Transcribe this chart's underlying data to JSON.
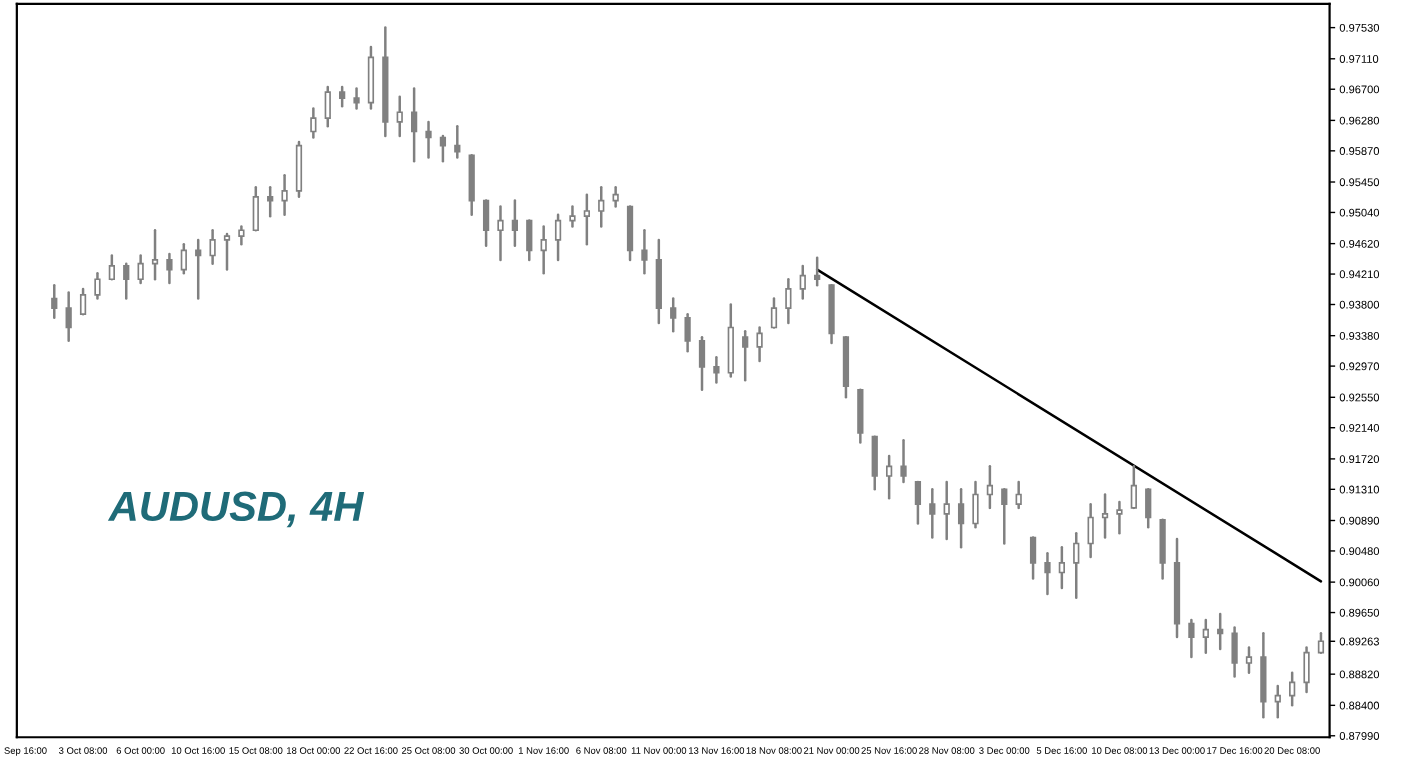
{
  "chart_data": {
    "type": "candlestick",
    "title": "AUDUSD, 4H",
    "color": "#808080",
    "grid": false,
    "categories": [
      "Sep 16:00",
      null,
      null,
      null,
      "3 Oct 08:00",
      null,
      null,
      null,
      "6 Oct 00:00",
      null,
      null,
      null,
      "10 Oct 16:00",
      null,
      null,
      null,
      "15 Oct 08:00",
      null,
      null,
      null,
      "18 Oct 00:00",
      null,
      null,
      null,
      "22 Oct 16:00",
      null,
      null,
      null,
      "25 Oct 08:00",
      null,
      null,
      null,
      "30 Oct 00:00",
      null,
      null,
      null,
      "1 Nov 16:00",
      null,
      null,
      null,
      "6 Nov 08:00",
      null,
      null,
      null,
      "11 Nov 00:00",
      null,
      null,
      null,
      "13 Nov 16:00",
      null,
      null,
      null,
      "18 Nov 08:00",
      null,
      null,
      null,
      "21 Nov 00:00",
      null,
      null,
      null,
      "25 Nov 16:00",
      null,
      null,
      null,
      "28 Nov 08:00",
      null,
      null,
      null,
      "3 Dec 00:00",
      null,
      null,
      null,
      "5 Dec 16:00",
      null,
      null,
      null,
      "10 Dec 08:00",
      null,
      null,
      null,
      "13 Dec 00:00",
      null,
      null,
      null,
      "17 Dec 16:00",
      null,
      null,
      null,
      "20 Dec 08:00",
      null,
      null
    ],
    "ohlc": [
      null,
      null,
      [
        0.9388,
        0.9406,
        0.9362,
        0.9375
      ],
      [
        0.9375,
        0.9396,
        0.9331,
        0.9349
      ],
      [
        0.9367,
        0.9401,
        0.9367,
        0.9393
      ],
      [
        0.9393,
        0.9422,
        0.9388,
        0.9414
      ],
      [
        0.9414,
        0.9446,
        0.9414,
        0.9432
      ],
      [
        0.9432,
        0.9435,
        0.9388,
        0.9414
      ],
      [
        0.9414,
        0.9446,
        0.9409,
        0.9435
      ],
      [
        0.9435,
        0.948,
        0.9414,
        0.944
      ],
      [
        0.944,
        0.9448,
        0.9409,
        0.9427
      ],
      [
        0.9427,
        0.9461,
        0.9422,
        0.9453
      ],
      [
        0.9453,
        0.9467,
        0.9388,
        0.9446
      ],
      [
        0.9446,
        0.948,
        0.9435,
        0.9467
      ],
      [
        0.9467,
        0.9475,
        0.9427,
        0.9472
      ],
      [
        0.9472,
        0.9485,
        0.9461,
        0.948
      ],
      [
        0.948,
        0.9538,
        0.948,
        0.9525
      ],
      [
        0.9525,
        0.9538,
        0.9499,
        0.952
      ],
      [
        0.952,
        0.9554,
        0.9501,
        0.9533
      ],
      [
        0.9533,
        0.9599,
        0.9525,
        0.9594
      ],
      [
        0.9613,
        0.9644,
        0.9605,
        0.9631
      ],
      [
        0.9631,
        0.9673,
        0.962,
        0.9666
      ],
      [
        0.9666,
        0.9673,
        0.9647,
        0.9658
      ],
      [
        0.9658,
        0.9671,
        0.9644,
        0.9652
      ],
      [
        0.9652,
        0.9727,
        0.9644,
        0.9713
      ],
      [
        0.9713,
        0.9753,
        0.9607,
        0.9626
      ],
      [
        0.9626,
        0.966,
        0.9607,
        0.9639
      ],
      [
        0.9639,
        0.9671,
        0.9573,
        0.9613
      ],
      [
        0.9613,
        0.9626,
        0.9578,
        0.9605
      ],
      [
        0.9605,
        0.9607,
        0.9573,
        0.9594
      ],
      [
        0.9594,
        0.962,
        0.9578,
        0.9586
      ],
      [
        0.9581,
        0.9581,
        0.9501,
        0.952
      ],
      [
        0.952,
        0.952,
        0.9459,
        0.948
      ],
      [
        0.948,
        0.9512,
        0.944,
        0.9493
      ],
      [
        0.9493,
        0.952,
        0.9459,
        0.948
      ],
      [
        0.9493,
        0.9493,
        0.944,
        0.9453
      ],
      [
        0.9453,
        0.9485,
        0.9422,
        0.9467
      ],
      [
        0.9467,
        0.9501,
        0.944,
        0.9493
      ],
      [
        0.9493,
        0.9512,
        0.9485,
        0.9499
      ],
      [
        0.9499,
        0.9528,
        0.9461,
        0.9506
      ],
      [
        0.9506,
        0.9538,
        0.9485,
        0.952
      ],
      [
        0.952,
        0.9538,
        0.9512,
        0.9528
      ],
      [
        0.9512,
        0.9512,
        0.944,
        0.9453
      ],
      [
        0.9453,
        0.948,
        0.9422,
        0.944
      ],
      [
        0.944,
        0.9467,
        0.9355,
        0.9375
      ],
      [
        0.9375,
        0.9388,
        0.9344,
        0.9362
      ],
      [
        0.9362,
        0.9367,
        0.9317,
        0.9331
      ],
      [
        0.9331,
        0.9336,
        0.9265,
        0.9296
      ],
      [
        0.9296,
        0.9309,
        0.9275,
        0.9288
      ],
      [
        0.9288,
        0.938,
        0.9283,
        0.9349
      ],
      [
        0.9336,
        0.9344,
        0.9278,
        0.9323
      ],
      [
        0.9323,
        0.9349,
        0.9304,
        0.9341
      ],
      [
        0.9349,
        0.9388,
        0.9349,
        0.9375
      ],
      [
        0.9375,
        0.9414,
        0.9355,
        0.9401
      ],
      [
        0.9401,
        0.9432,
        0.9388,
        0.9419
      ],
      [
        0.9419,
        0.9443,
        0.9406,
        0.9414
      ],
      [
        0.9406,
        0.9406,
        0.9328,
        0.9341
      ],
      [
        0.9336,
        0.9336,
        0.9255,
        0.927
      ],
      [
        0.9265,
        0.9265,
        0.9194,
        0.9207
      ],
      [
        0.9202,
        0.9202,
        0.9131,
        0.9149
      ],
      [
        0.9149,
        0.9176,
        0.9119,
        0.9162
      ],
      [
        0.9162,
        0.9197,
        0.9141,
        0.9149
      ],
      [
        0.9141,
        0.9141,
        0.9085,
        0.9111
      ],
      [
        0.9111,
        0.9131,
        0.9066,
        0.9098
      ],
      [
        0.9098,
        0.9141,
        0.9064,
        0.9111
      ],
      [
        0.9111,
        0.9131,
        0.9053,
        0.9085
      ],
      [
        0.9085,
        0.9141,
        0.908,
        0.9124
      ],
      [
        0.9124,
        0.9162,
        0.9106,
        0.9136
      ],
      [
        0.9131,
        0.9131,
        0.9058,
        0.9111
      ],
      [
        0.9111,
        0.9141,
        0.9106,
        0.9124
      ],
      [
        0.9066,
        0.9066,
        0.9011,
        0.9032
      ],
      [
        0.9032,
        0.9045,
        0.899,
        0.9019
      ],
      [
        0.9019,
        0.9053,
        0.8998,
        0.9032
      ],
      [
        0.9032,
        0.9072,
        0.8985,
        0.9058
      ],
      [
        0.9058,
        0.9111,
        0.904,
        0.9093
      ],
      [
        0.9093,
        0.9124,
        0.9066,
        0.9098
      ],
      [
        0.9098,
        0.9114,
        0.9072,
        0.9103
      ],
      [
        0.9106,
        0.9162,
        0.9106,
        0.9136
      ],
      [
        0.9131,
        0.9131,
        0.908,
        0.9093
      ],
      [
        0.909,
        0.909,
        0.9011,
        0.9032
      ],
      [
        0.9032,
        0.9064,
        0.8932,
        0.895
      ],
      [
        0.895,
        0.8955,
        0.8905,
        0.8932
      ],
      [
        0.8932,
        0.8955,
        0.8911,
        0.8942
      ],
      [
        0.8942,
        0.8963,
        0.8916,
        0.8937
      ],
      [
        0.8937,
        0.8945,
        0.8879,
        0.8897
      ],
      [
        0.8897,
        0.8918,
        0.8884,
        0.8905
      ],
      [
        0.8905,
        0.8937,
        0.8824,
        0.8845
      ],
      [
        0.8845,
        0.8866,
        0.8824,
        0.8853
      ],
      [
        0.8853,
        0.8884,
        0.884,
        0.8871
      ],
      [
        0.8871,
        0.8918,
        0.8858,
        0.8911
      ],
      [
        0.8911,
        0.8937,
        0.8911,
        0.89263
      ]
    ],
    "series": [
      {
        "type": "line",
        "color": "#000000",
        "values": [
          null,
          null,
          null,
          null,
          null,
          null,
          null,
          null,
          null,
          null,
          null,
          null,
          null,
          null,
          null,
          null,
          null,
          null,
          null,
          null,
          null,
          null,
          null,
          null,
          null,
          null,
          null,
          null,
          null,
          null,
          null,
          null,
          null,
          null,
          null,
          null,
          null,
          null,
          null,
          null,
          null,
          null,
          null,
          null,
          null,
          null,
          null,
          null,
          null,
          null,
          null,
          null,
          null,
          null,
          null,
          0.9427,
          null,
          null,
          null,
          null,
          null,
          null,
          null,
          null,
          null,
          null,
          null,
          null,
          null,
          null,
          null,
          null,
          null,
          null,
          null,
          null,
          null,
          null,
          null,
          null,
          null,
          null,
          null,
          null,
          null,
          null,
          null,
          null,
          null,
          null,
          0.9007
        ]
      }
    ],
    "ylim": [
      0.8797,
      0.9785
    ],
    "yticks": [
      {
        "value": 0.9753,
        "label": "0.97530"
      },
      {
        "value": 0.9711,
        "label": "0.97110"
      },
      {
        "value": 0.967,
        "label": "0.96700"
      },
      {
        "value": 0.9628,
        "label": "0.96280"
      },
      {
        "value": 0.9587,
        "label": "0.95870"
      },
      {
        "value": 0.9545,
        "label": "0.95450"
      },
      {
        "value": 0.9504,
        "label": "0.95040"
      },
      {
        "value": 0.9462,
        "label": "0.94620"
      },
      {
        "value": 0.9421,
        "label": "0.94210"
      },
      {
        "value": 0.938,
        "label": "0.93800"
      },
      {
        "value": 0.9338,
        "label": "0.93380"
      },
      {
        "value": 0.9297,
        "label": "0.92970"
      },
      {
        "value": 0.9255,
        "label": "0.92550"
      },
      {
        "value": 0.9214,
        "label": "0.92140"
      },
      {
        "value": 0.9172,
        "label": "0.91720"
      },
      {
        "value": 0.9131,
        "label": "0.91310"
      },
      {
        "value": 0.9089,
        "label": "0.90890"
      },
      {
        "value": 0.9048,
        "label": "0.90480"
      },
      {
        "value": 0.9006,
        "label": "0.90060"
      },
      {
        "value": 0.8965,
        "label": "0.89650"
      },
      {
        "value": 0.89263,
        "label": "0.89263"
      },
      {
        "value": 0.8882,
        "label": "0.88820"
      },
      {
        "value": 0.884,
        "label": "0.88400"
      },
      {
        "value": 0.8799,
        "label": "0.87990"
      }
    ]
  }
}
